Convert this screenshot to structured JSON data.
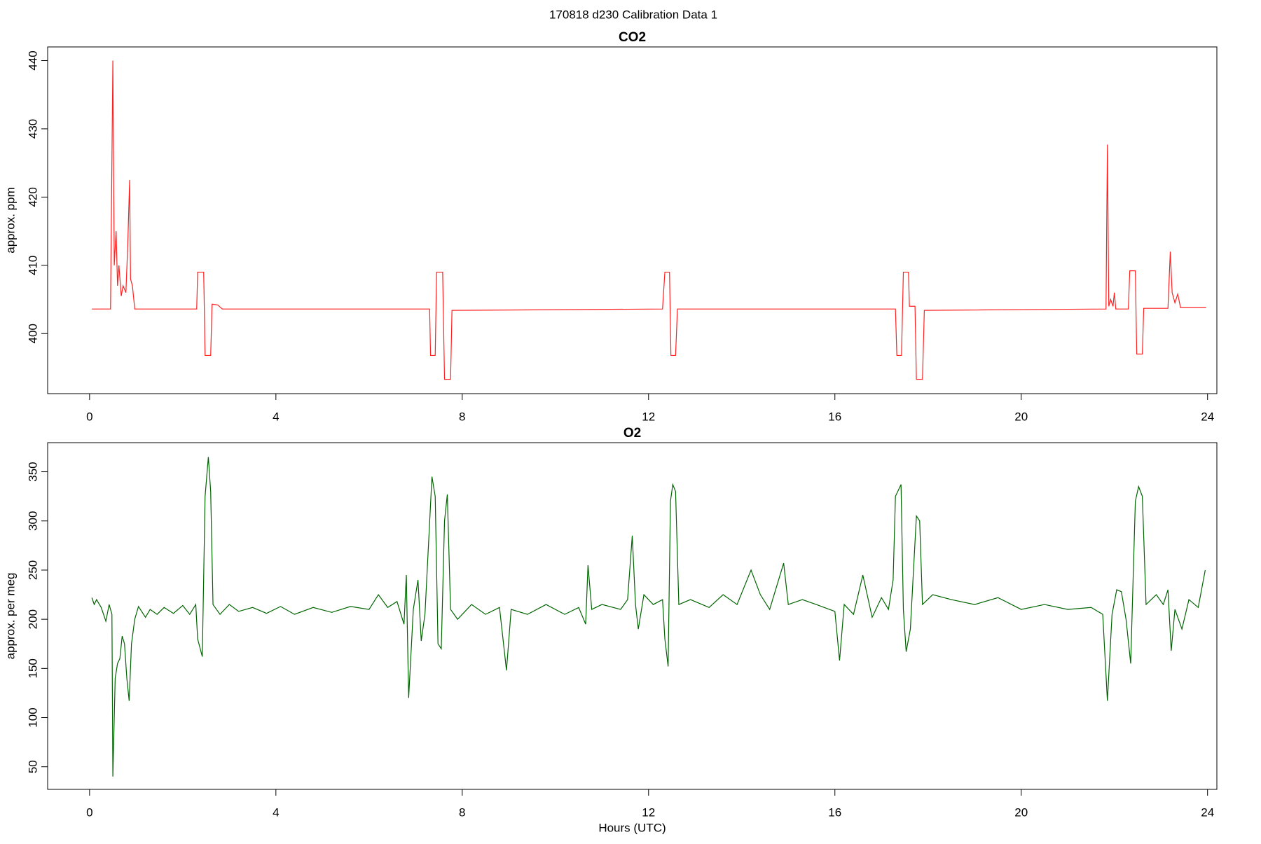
{
  "title": "170818   d230   Calibration Data 1",
  "chart_data": [
    {
      "type": "line",
      "title": "CO2",
      "y_label": "approx. ppm",
      "xlim": [
        -0.9,
        24.2
      ],
      "xticks": [
        0,
        4,
        8,
        12,
        16,
        20,
        24
      ],
      "ylim": [
        391.2,
        442.0
      ],
      "yticks": [
        400,
        410,
        420,
        430,
        440
      ],
      "series": [
        {
          "color": "#ff2020",
          "x": [
            0.05,
            0.45,
            0.5,
            0.53,
            0.57,
            0.6,
            0.63,
            0.68,
            0.72,
            0.78,
            0.82,
            0.86,
            0.88,
            0.92,
            0.97,
            2.3,
            2.32,
            2.45,
            2.48,
            2.6,
            2.63,
            2.75,
            2.85,
            7.3,
            7.32,
            7.42,
            7.45,
            7.58,
            7.62,
            7.75,
            7.78,
            12.3,
            12.35,
            12.45,
            12.48,
            12.58,
            12.62,
            17.3,
            17.33,
            17.43,
            17.47,
            17.58,
            17.6,
            17.72,
            17.75,
            17.88,
            17.92,
            21.82,
            21.85,
            21.88,
            21.92,
            21.97,
            22.0,
            22.03,
            22.3,
            22.33,
            22.45,
            22.48,
            22.6,
            22.63,
            23.15,
            23.2,
            23.24,
            23.3,
            23.36,
            23.42,
            23.97
          ],
          "values": [
            403.6,
            403.6,
            440,
            410,
            415,
            407,
            410,
            405.5,
            407,
            406,
            413,
            422.5,
            408,
            407,
            403.6,
            403.6,
            409,
            409,
            396.8,
            396.8,
            404.3,
            404.2,
            403.6,
            403.6,
            396.8,
            396.8,
            409,
            409,
            393.3,
            393.3,
            403.4,
            403.6,
            409,
            409,
            396.8,
            396.8,
            403.6,
            403.6,
            396.8,
            396.8,
            409,
            409,
            404,
            404,
            393.3,
            393.3,
            403.4,
            403.6,
            427.7,
            404,
            405,
            404,
            406,
            403.6,
            403.6,
            409.2,
            409.2,
            397,
            397,
            403.7,
            403.7,
            412,
            406,
            404.5,
            405.8,
            403.8,
            403.8
          ]
        }
      ]
    },
    {
      "type": "line",
      "title": "O2",
      "y_label": "approx. per meg",
      "x_label": "Hours (UTC)",
      "xlim": [
        -0.9,
        24.2
      ],
      "xticks": [
        0,
        4,
        8,
        12,
        16,
        20,
        24
      ],
      "ylim": [
        27,
        379.6
      ],
      "yticks": [
        50,
        100,
        150,
        200,
        250,
        300,
        350
      ],
      "series": [
        {
          "color": "#006400",
          "x": [
            0.05,
            0.1,
            0.15,
            0.25,
            0.35,
            0.42,
            0.48,
            0.5,
            0.55,
            0.6,
            0.65,
            0.7,
            0.75,
            0.8,
            0.85,
            0.9,
            0.97,
            1.05,
            1.2,
            1.3,
            1.45,
            1.6,
            1.8,
            2.0,
            2.15,
            2.28,
            2.32,
            2.42,
            2.48,
            2.55,
            2.6,
            2.65,
            2.8,
            3.0,
            3.2,
            3.5,
            3.8,
            4.1,
            4.4,
            4.8,
            5.2,
            5.6,
            6.0,
            6.2,
            6.4,
            6.6,
            6.75,
            6.8,
            6.85,
            6.95,
            7.05,
            7.12,
            7.2,
            7.35,
            7.42,
            7.48,
            7.55,
            7.62,
            7.68,
            7.75,
            7.9,
            8.2,
            8.5,
            8.8,
            8.95,
            9.05,
            9.4,
            9.8,
            10.2,
            10.5,
            10.65,
            10.7,
            10.78,
            11.0,
            11.4,
            11.55,
            11.65,
            11.72,
            11.78,
            11.9,
            12.1,
            12.3,
            12.35,
            12.42,
            12.47,
            12.52,
            12.58,
            12.65,
            12.9,
            13.3,
            13.6,
            13.9,
            14.2,
            14.4,
            14.6,
            14.9,
            15.0,
            15.3,
            15.6,
            16.0,
            16.1,
            16.2,
            16.4,
            16.6,
            16.8,
            17.0,
            17.15,
            17.25,
            17.3,
            17.42,
            17.47,
            17.53,
            17.62,
            17.75,
            17.82,
            17.88,
            18.1,
            18.5,
            19.0,
            19.5,
            20.0,
            20.5,
            21.0,
            21.5,
            21.75,
            21.85,
            21.95,
            22.05,
            22.15,
            22.25,
            22.35,
            22.45,
            22.52,
            22.6,
            22.68,
            22.9,
            23.05,
            23.15,
            23.22,
            23.3,
            23.45,
            23.6,
            23.8,
            23.95
          ],
          "values": [
            222,
            215,
            220,
            212,
            198,
            215,
            205,
            40,
            140,
            155,
            160,
            183,
            175,
            140,
            117,
            175,
            200,
            213,
            202,
            210,
            205,
            212,
            206,
            214,
            205,
            215,
            180,
            162,
            325,
            365,
            330,
            215,
            205,
            215,
            208,
            212,
            206,
            213,
            205,
            212,
            207,
            213,
            210,
            225,
            212,
            218,
            195,
            245,
            120,
            210,
            240,
            178,
            205,
            345,
            325,
            175,
            170,
            300,
            327,
            210,
            200,
            215,
            205,
            212,
            148,
            210,
            205,
            215,
            205,
            212,
            195,
            255,
            210,
            215,
            210,
            220,
            285,
            215,
            190,
            225,
            215,
            220,
            180,
            152,
            320,
            337,
            330,
            215,
            220,
            212,
            225,
            215,
            250,
            225,
            210,
            257,
            215,
            220,
            215,
            208,
            158,
            215,
            205,
            245,
            202,
            222,
            210,
            240,
            325,
            337,
            210,
            167,
            190,
            305,
            300,
            215,
            225,
            220,
            215,
            222,
            210,
            215,
            210,
            212,
            205,
            117,
            205,
            230,
            228,
            200,
            155,
            320,
            335,
            325,
            215,
            225,
            215,
            230,
            168,
            210,
            190,
            220,
            212,
            250
          ]
        }
      ]
    }
  ]
}
